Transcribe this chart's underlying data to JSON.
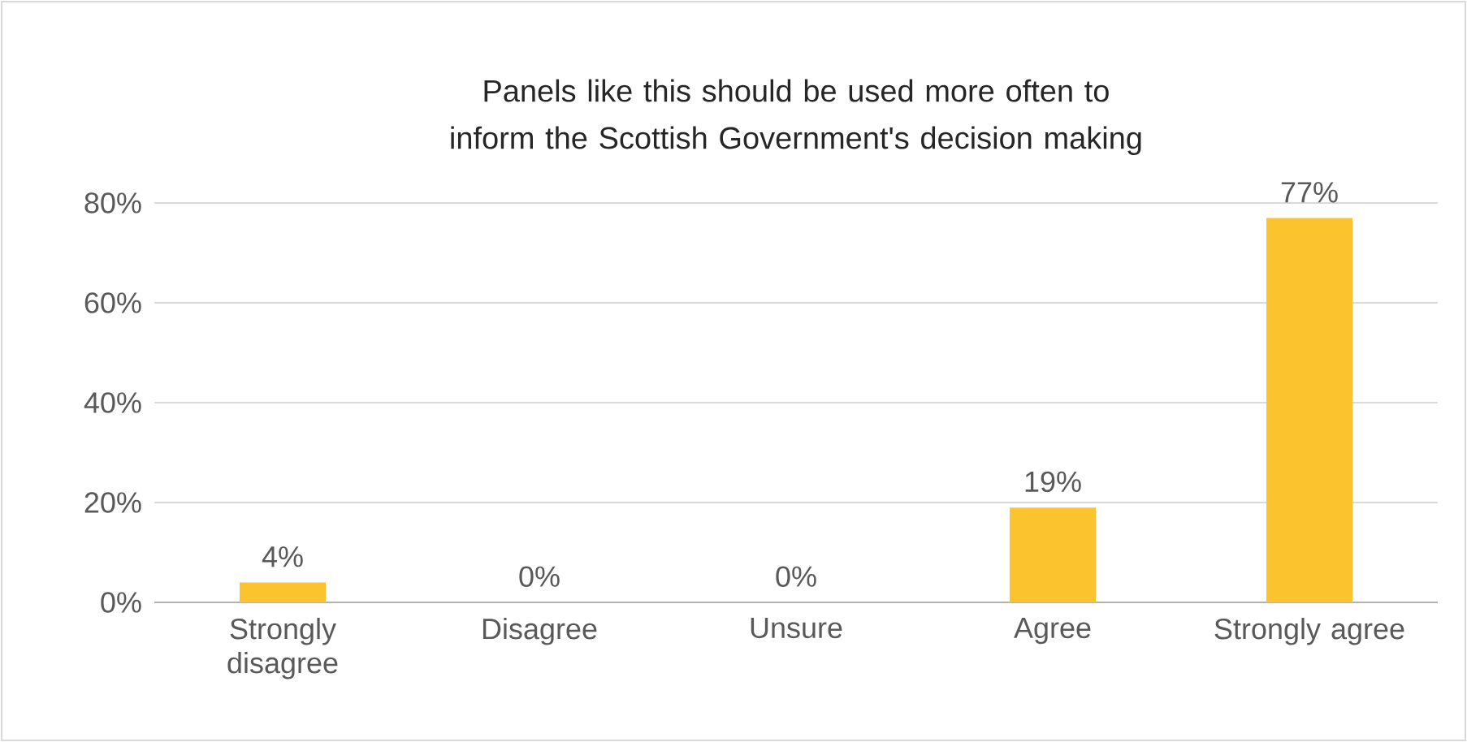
{
  "chart_data": {
    "type": "bar",
    "title": "Panels like this should be used more often to inform the Scottish Government's decision making",
    "categories": [
      "Strongly disagree",
      "Disagree",
      "Unsure",
      "Agree",
      "Strongly agree"
    ],
    "values": [
      4,
      0,
      0,
      19,
      77
    ],
    "value_labels": [
      "4%",
      "0%",
      "0%",
      "19%",
      "77%"
    ],
    "color": "#fbc42f",
    "ylim": [
      0,
      80
    ],
    "yticks": [
      {
        "value": 0,
        "label": "0%"
      },
      {
        "value": 20,
        "label": "20%"
      },
      {
        "value": 40,
        "label": "40%"
      },
      {
        "value": 60,
        "label": "60%"
      },
      {
        "value": 80,
        "label": "80%"
      }
    ],
    "grid": "y"
  }
}
